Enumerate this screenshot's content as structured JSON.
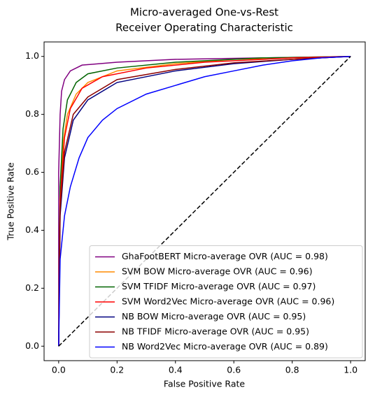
{
  "chart_data": {
    "type": "line",
    "title": [
      "Micro-averaged One-vs-Rest",
      "Receiver Operating Characteristic"
    ],
    "xlabel": "False Positive Rate",
    "ylabel": "True Positive Rate",
    "xlim": [
      -0.05,
      1.05
    ],
    "ylim": [
      -0.05,
      1.05
    ],
    "xticks": [
      {
        "value": 0,
        "label": "0.0"
      },
      0.2,
      0.4,
      0.6,
      0.8,
      {
        "value": 1,
        "label": "1.0"
      }
    ],
    "yticks": [
      {
        "value": 0,
        "label": "0.0"
      },
      0.2,
      0.4,
      0.6,
      0.8,
      {
        "value": 1,
        "label": "1.0"
      }
    ],
    "grid": false,
    "legend": "lower right",
    "diagonal": {
      "x": [
        0,
        1
      ],
      "values": [
        0,
        1
      ],
      "color": "#000000"
    },
    "series": [
      {
        "name": "GhaFootBERT Micro-average OVR (AUC = 0.98)",
        "color": "#800080",
        "x": [
          0,
          0,
          0.005,
          0.01,
          0.02,
          0.04,
          0.08,
          0.2,
          0.4,
          0.7,
          1
        ],
        "values": [
          0,
          0.6,
          0.8,
          0.88,
          0.92,
          0.95,
          0.97,
          0.98,
          0.99,
          0.995,
          1
        ]
      },
      {
        "name": "SVM BOW Micro-average OVR (AUC = 0.96)",
        "color": "#ff8c00",
        "x": [
          0,
          0.005,
          0.015,
          0.03,
          0.06,
          0.1,
          0.2,
          0.4,
          0.6,
          1
        ],
        "values": [
          0,
          0.5,
          0.7,
          0.8,
          0.87,
          0.91,
          0.95,
          0.975,
          0.99,
          1
        ]
      },
      {
        "name": "SVM TFIDF Micro-average OVR (AUC = 0.97)",
        "color": "#006400",
        "x": [
          0,
          0.005,
          0.015,
          0.03,
          0.06,
          0.1,
          0.2,
          0.4,
          0.7,
          1
        ],
        "values": [
          0,
          0.55,
          0.75,
          0.85,
          0.91,
          0.94,
          0.96,
          0.98,
          0.995,
          1
        ]
      },
      {
        "name": "SVM Word2Vec Micro-average OVR (AUC = 0.96)",
        "color": "#ff0000",
        "x": [
          0,
          0.005,
          0.02,
          0.04,
          0.08,
          0.15,
          0.3,
          0.5,
          0.8,
          1
        ],
        "values": [
          0,
          0.5,
          0.72,
          0.82,
          0.89,
          0.93,
          0.96,
          0.98,
          0.995,
          1
        ]
      },
      {
        "name": "NB BOW Micro-average OVR (AUC = 0.95)",
        "color": "#000080",
        "x": [
          0,
          0.005,
          0.02,
          0.05,
          0.1,
          0.2,
          0.4,
          0.6,
          0.8,
          1
        ],
        "values": [
          0,
          0.45,
          0.65,
          0.78,
          0.85,
          0.91,
          0.95,
          0.975,
          0.99,
          1
        ]
      },
      {
        "name": "NB TFIDF Micro-average OVR (AUC = 0.95)",
        "color": "#8b0000",
        "x": [
          0,
          0.005,
          0.02,
          0.05,
          0.1,
          0.2,
          0.4,
          0.6,
          0.8,
          1
        ],
        "values": [
          0,
          0.47,
          0.67,
          0.8,
          0.86,
          0.92,
          0.955,
          0.978,
          0.99,
          1
        ]
      },
      {
        "name": "NB Word2Vec Micro-average OVR (AUC = 0.89)",
        "color": "#0000ff",
        "x": [
          0,
          0.005,
          0.02,
          0.04,
          0.07,
          0.1,
          0.15,
          0.2,
          0.3,
          0.4,
          0.5,
          0.6,
          0.7,
          0.8,
          0.9,
          1
        ],
        "values": [
          0,
          0.3,
          0.45,
          0.55,
          0.65,
          0.72,
          0.78,
          0.82,
          0.87,
          0.9,
          0.93,
          0.95,
          0.97,
          0.985,
          0.995,
          1
        ]
      }
    ]
  }
}
